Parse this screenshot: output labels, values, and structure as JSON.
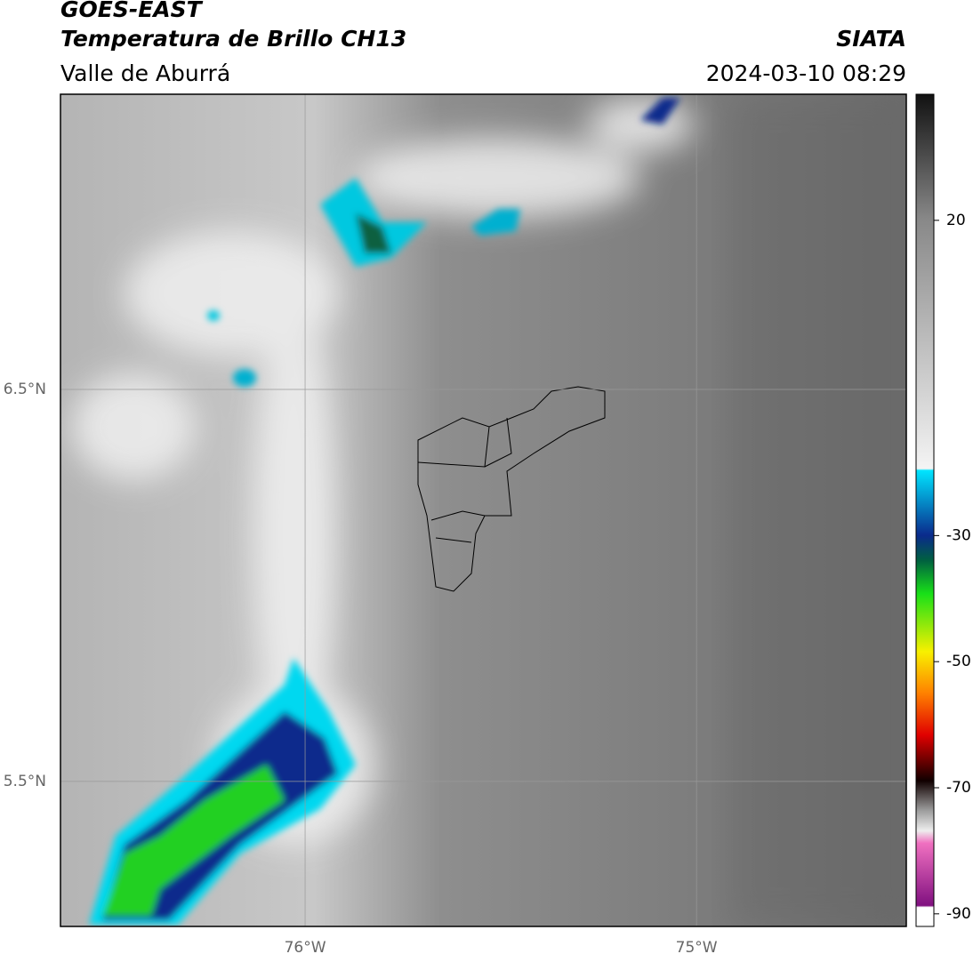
{
  "header": {
    "title": "GOES-EAST",
    "subtitle": "Temperatura de Brillo CH13",
    "region": "Valle de Aburrá",
    "source": "SIATA",
    "datetime": "2024-03-10 08:29"
  },
  "map": {
    "xlim": [
      -76.625,
      -74.464
    ],
    "ylim": [
      5.13,
      7.253
    ],
    "xticks": [
      {
        "value": -76,
        "label": "76°W"
      },
      {
        "value": -75,
        "label": "75°W"
      }
    ],
    "yticks": [
      {
        "value": 6.5,
        "label": "6.5°N"
      },
      {
        "value": 5.5,
        "label": "5.5°N"
      }
    ]
  },
  "colorbar": {
    "lim": [
      -92,
      40
    ],
    "ticks": [
      20,
      -30,
      -50,
      -70,
      -90
    ]
  }
}
